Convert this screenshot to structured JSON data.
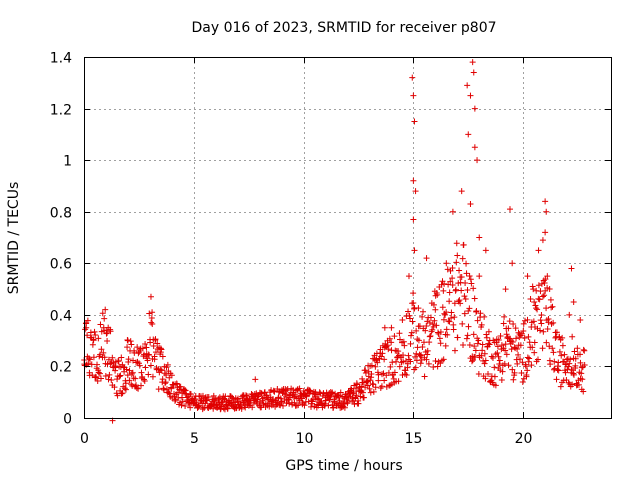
{
  "chart_data": {
    "type": "scatter",
    "title": "Day 016 of 2023, SRMTID for receiver p807",
    "xlabel": "GPS time / hours",
    "ylabel": "SRMTID / TECUs",
    "xlim": [
      0,
      24
    ],
    "ylim": [
      0,
      1.4
    ],
    "x_ticks": [
      0,
      5,
      10,
      15,
      20
    ],
    "x_tick_labels": [
      "0",
      "5",
      "10",
      "15",
      "20"
    ],
    "y_ticks": [
      0,
      0.2,
      0.4,
      0.6,
      0.8,
      1.0,
      1.2,
      1.4
    ],
    "y_tick_labels": [
      "0",
      "0.2",
      "0.4",
      "0.6",
      "0.8",
      "1",
      "1.2",
      "1.4"
    ],
    "grid": true,
    "marker": "+",
    "series": [
      {
        "name": "SRMTID",
        "color": "#e00000",
        "profile": [
          [
            0.0,
            0.3
          ],
          [
            0.3,
            0.25
          ],
          [
            0.6,
            0.22
          ],
          [
            0.9,
            0.3
          ],
          [
            1.1,
            0.28
          ],
          [
            1.4,
            0.15
          ],
          [
            1.8,
            0.17
          ],
          [
            2.0,
            0.22
          ],
          [
            2.4,
            0.2
          ],
          [
            2.8,
            0.2
          ],
          [
            3.0,
            0.3
          ],
          [
            3.3,
            0.22
          ],
          [
            3.6,
            0.17
          ],
          [
            4.0,
            0.12
          ],
          [
            4.5,
            0.08
          ],
          [
            5.0,
            0.06
          ],
          [
            6.0,
            0.06
          ],
          [
            7.0,
            0.06
          ],
          [
            8.0,
            0.07
          ],
          [
            9.0,
            0.08
          ],
          [
            10.0,
            0.08
          ],
          [
            11.0,
            0.07
          ],
          [
            12.0,
            0.07
          ],
          [
            12.5,
            0.1
          ],
          [
            13.0,
            0.15
          ],
          [
            13.5,
            0.2
          ],
          [
            14.0,
            0.22
          ],
          [
            14.5,
            0.25
          ],
          [
            14.9,
            0.35
          ],
          [
            15.2,
            0.3
          ],
          [
            15.6,
            0.28
          ],
          [
            16.0,
            0.35
          ],
          [
            16.4,
            0.38
          ],
          [
            16.8,
            0.45
          ],
          [
            17.2,
            0.5
          ],
          [
            17.6,
            0.4
          ],
          [
            18.0,
            0.3
          ],
          [
            18.4,
            0.25
          ],
          [
            18.8,
            0.22
          ],
          [
            19.2,
            0.3
          ],
          [
            19.6,
            0.25
          ],
          [
            20.0,
            0.25
          ],
          [
            20.4,
            0.35
          ],
          [
            20.8,
            0.4
          ],
          [
            21.2,
            0.35
          ],
          [
            21.6,
            0.22
          ],
          [
            22.0,
            0.22
          ],
          [
            22.4,
            0.22
          ],
          [
            22.8,
            0.18
          ]
        ],
        "peaks": [
          [
            0.1,
            0.35
          ],
          [
            0.9,
            0.35
          ],
          [
            1.05,
            0.33
          ],
          [
            2.0,
            0.3
          ],
          [
            3.05,
            0.47
          ],
          [
            3.1,
            0.41
          ],
          [
            3.5,
            0.27
          ],
          [
            7.8,
            0.15
          ],
          [
            13.7,
            0.35
          ],
          [
            14.0,
            0.35
          ],
          [
            14.5,
            0.38
          ],
          [
            14.8,
            0.55
          ],
          [
            14.95,
            1.32
          ],
          [
            15.0,
            1.25
          ],
          [
            15.05,
            1.15
          ],
          [
            15.0,
            0.92
          ],
          [
            15.1,
            0.88
          ],
          [
            15.0,
            0.77
          ],
          [
            15.05,
            0.65
          ],
          [
            15.6,
            0.62
          ],
          [
            16.0,
            0.42
          ],
          [
            16.4,
            0.52
          ],
          [
            16.5,
            0.6
          ],
          [
            16.8,
            0.8
          ],
          [
            17.0,
            0.63
          ],
          [
            17.2,
            0.88
          ],
          [
            17.45,
            1.29
          ],
          [
            17.6,
            1.25
          ],
          [
            17.7,
            1.38
          ],
          [
            17.75,
            1.34
          ],
          [
            17.8,
            1.2
          ],
          [
            17.5,
            1.1
          ],
          [
            17.8,
            1.05
          ],
          [
            17.9,
            1.0
          ],
          [
            17.6,
            0.83
          ],
          [
            18.0,
            0.7
          ],
          [
            18.3,
            0.65
          ],
          [
            18.0,
            0.55
          ],
          [
            19.4,
            0.81
          ],
          [
            19.5,
            0.6
          ],
          [
            19.2,
            0.5
          ],
          [
            20.2,
            0.55
          ],
          [
            20.5,
            0.45
          ],
          [
            20.7,
            0.65
          ],
          [
            20.9,
            0.69
          ],
          [
            21.0,
            0.84
          ],
          [
            21.05,
            0.8
          ],
          [
            21.0,
            0.72
          ],
          [
            21.1,
            0.55
          ],
          [
            22.2,
            0.58
          ],
          [
            22.3,
            0.45
          ],
          [
            22.1,
            0.4
          ],
          [
            22.6,
            0.38
          ],
          [
            1.3,
            -0.01
          ]
        ]
      }
    ]
  }
}
